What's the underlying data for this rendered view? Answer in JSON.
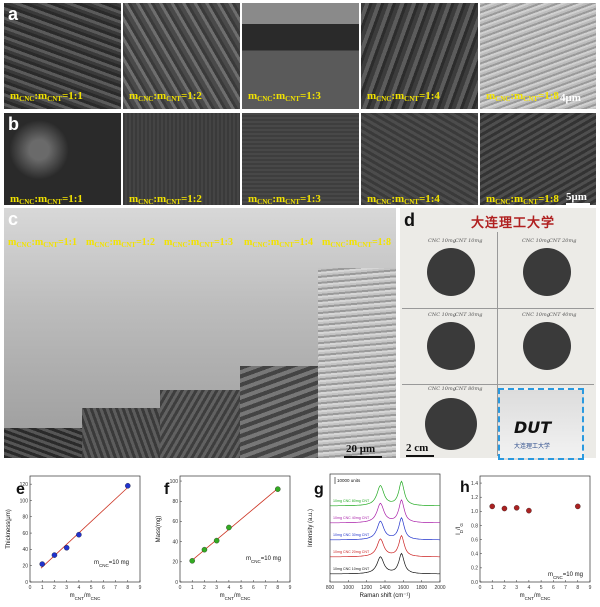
{
  "panels": {
    "a": {
      "label": "a",
      "ratios": [
        "1:1",
        "1:2",
        "1:3",
        "1:4",
        "1:8"
      ],
      "scale_bar": "4μm"
    },
    "b": {
      "label": "b",
      "ratios": [
        "1:1",
        "1:2",
        "1:3",
        "1:4",
        "1:8"
      ],
      "scale_bar": "5μm"
    },
    "c": {
      "label": "c",
      "ratios": [
        "1:1",
        "1:2",
        "1:3",
        "1:4",
        "1:8"
      ],
      "scale_bar": "20 μm"
    },
    "d": {
      "label": "d",
      "header_text": "大连理工大学",
      "scale_bar": "2 cm",
      "samples": [
        "CNC 10mg",
        "CNT 10mg",
        "CNC 10mg",
        "CNT 20mg",
        "CNC 10mg",
        "CNT 30mg",
        "CNC 10mg",
        "CNT 40mg",
        "CNC 10mg",
        "CNT 80mg"
      ],
      "inset_text": "DUT",
      "inset_caption": "大连理工大学"
    },
    "ratio_prefix": "m",
    "ratio_sub1": "CNC",
    "ratio_mid": ":m",
    "ratio_sub2": "CNT",
    "ratio_eq": "="
  },
  "charts": {
    "e": {
      "label": "e",
      "ylabel": "Thickness(μm)",
      "xlabel": "m",
      "xlabel_sub": "CNT",
      "xlabel_mid": "/m",
      "xlabel_sub2": "CNC",
      "annotation": "m",
      "annotation_sub": "CNC",
      "annotation_tail": "=10 mg",
      "xticks": [
        "0",
        "1",
        "2",
        "3",
        "4",
        "5",
        "6",
        "7",
        "8",
        "9"
      ],
      "yticks": [
        "0",
        "20",
        "40",
        "60",
        "80",
        "100",
        "120"
      ]
    },
    "f": {
      "label": "f",
      "ylabel": "Mass(mg)",
      "xlabel": "m",
      "xlabel_sub": "CNT",
      "xlabel_mid": "/m",
      "xlabel_sub2": "CNC",
      "annotation": "m",
      "annotation_sub": "CNC",
      "annotation_tail": "=10 mg",
      "xticks": [
        "0",
        "1",
        "2",
        "3",
        "4",
        "5",
        "6",
        "7",
        "8",
        "9"
      ],
      "yticks": [
        "0",
        "20",
        "40",
        "60",
        "80",
        "100"
      ]
    },
    "g": {
      "label": "g",
      "ylabel": "Intensity (a.u.)",
      "xlabel": "Raman shift (cm⁻¹)",
      "scale_note": "10000 units",
      "xticks": [
        "800",
        "1000",
        "1200",
        "1400",
        "1600",
        "1800",
        "2000"
      ],
      "legend": [
        "10mg CNC 80mg CNT",
        "10mg CNC 40mg CNT",
        "10mg CNC 30mg CNT",
        "10mg CNC 20mg CNT",
        "10mg CNC 10mg CNT"
      ]
    },
    "h": {
      "label": "h",
      "ylabel": "I",
      "ylabel_sub": "D",
      "ylabel_mid": "/I",
      "ylabel_sub2": "G",
      "xlabel": "m",
      "xlabel_sub": "CNT",
      "xlabel_mid": "/m",
      "xlabel_sub2": "CNC",
      "annotation": "m",
      "annotation_sub": "CNC",
      "annotation_tail": "=10 mg",
      "xticks": [
        "0",
        "1",
        "2",
        "3",
        "4",
        "5",
        "6",
        "7",
        "8",
        "9"
      ],
      "yticks": [
        "0.0",
        "0.2",
        "0.4",
        "0.6",
        "0.8",
        "1.0",
        "1.2",
        "1.4"
      ]
    }
  },
  "chart_data": [
    {
      "type": "scatter",
      "panel": "e",
      "x": [
        1,
        2,
        3,
        4,
        8
      ],
      "y": [
        22,
        33,
        42,
        58,
        118
      ],
      "fit_line": true,
      "xlim": [
        0,
        9
      ],
      "ylim": [
        0,
        130
      ],
      "marker_color": "#2233cc",
      "line_color": "#cc3322"
    },
    {
      "type": "scatter",
      "panel": "f",
      "x": [
        1,
        2,
        3,
        4,
        8
      ],
      "y": [
        21,
        32,
        41,
        54,
        92
      ],
      "fit_line": true,
      "xlim": [
        0,
        9
      ],
      "ylim": [
        0,
        105
      ],
      "marker_color": "#33aa22",
      "line_color": "#cc3322"
    },
    {
      "type": "line",
      "panel": "g",
      "x_peaks": [
        1350,
        1580
      ],
      "xlim": [
        800,
        2000
      ],
      "series": [
        {
          "name": "10mg CNC 80mg CNT",
          "color": "#22aa22",
          "offset": 4,
          "d": 2.5,
          "g": 3.0
        },
        {
          "name": "10mg CNC 40mg CNT",
          "color": "#aa22aa",
          "offset": 3,
          "d": 2.4,
          "g": 2.8
        },
        {
          "name": "10mg CNC 30mg CNT",
          "color": "#2233cc",
          "offset": 2,
          "d": 2.3,
          "g": 2.7
        },
        {
          "name": "10mg CNC 20mg CNT",
          "color": "#cc2222",
          "offset": 1,
          "d": 2.2,
          "g": 2.6
        },
        {
          "name": "10mg CNC 10mg CNT",
          "color": "#111111",
          "offset": 0,
          "d": 2.1,
          "g": 2.5
        }
      ]
    },
    {
      "type": "scatter",
      "panel": "h",
      "x": [
        1,
        2,
        3,
        4,
        8
      ],
      "y": [
        1.07,
        1.04,
        1.05,
        1.01,
        1.07
      ],
      "xlim": [
        0,
        9
      ],
      "ylim": [
        0,
        1.5
      ],
      "marker_color": "#aa2222"
    }
  ]
}
